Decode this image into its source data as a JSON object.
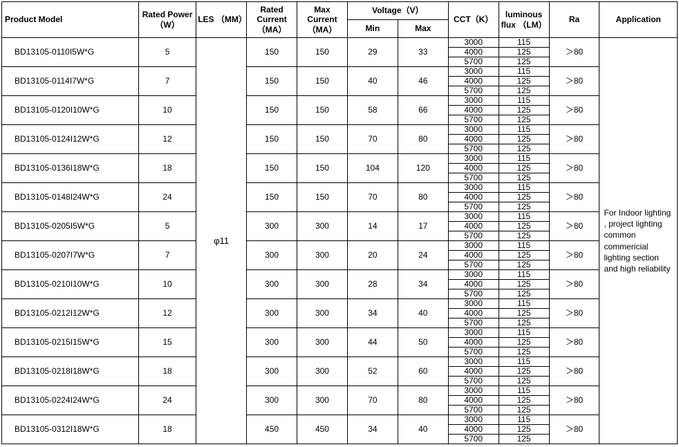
{
  "headers": {
    "product": "Product Model",
    "power": "Rated Power （W）",
    "les": "LES （MM）",
    "rated": "Rated Current （MA）",
    "max": "Max Current （MA）",
    "voltage": "Voltage（V）",
    "vmin": "Min",
    "vmax": "Max",
    "cct": "CCT（K）",
    "lum": "luminous flux （LM）",
    "ra": "Ra",
    "app": "Application"
  },
  "les_value": "φ11",
  "application_text": "For Indoor lighting , project lighting common  commericial lighting section and high reliability",
  "cct_values": [
    "3000",
    "4000",
    "5700"
  ],
  "lum_values": [
    "115",
    "125",
    "125"
  ],
  "ra_value": "＞80",
  "rows": [
    {
      "model": "BD13105-0110I5W*G",
      "power": "5",
      "rated": "150",
      "max": "150",
      "vmin": "29",
      "vmax": "33"
    },
    {
      "model": "BD13105-0114I7W*G",
      "power": "7",
      "rated": "150",
      "max": "150",
      "vmin": "40",
      "vmax": "46"
    },
    {
      "model": "BD13105-0120I10W*G",
      "power": "10",
      "rated": "150",
      "max": "150",
      "vmin": "58",
      "vmax": "66"
    },
    {
      "model": "BD13105-0124I12W*G",
      "power": "12",
      "rated": "150",
      "max": "150",
      "vmin": "70",
      "vmax": "80"
    },
    {
      "model": "BD13105-0136I18W*G",
      "power": "18",
      "rated": "150",
      "max": "150",
      "vmin": "104",
      "vmax": "120"
    },
    {
      "model": "BD13105-0148I24W*G",
      "power": "24",
      "rated": "150",
      "max": "150",
      "vmin": "70",
      "vmax": "80"
    },
    {
      "model": "BD13105-0205I5W*G",
      "power": "5",
      "rated": "300",
      "max": "300",
      "vmin": "14",
      "vmax": "17"
    },
    {
      "model": "BD13105-0207I7W*G",
      "power": "7",
      "rated": "300",
      "max": "300",
      "vmin": "20",
      "vmax": "24"
    },
    {
      "model": "BD13105-0210I10W*G",
      "power": "10",
      "rated": "300",
      "max": "300",
      "vmin": "28",
      "vmax": "34"
    },
    {
      "model": "BD13105-0212I12W*G",
      "power": "12",
      "rated": "300",
      "max": "300",
      "vmin": "34",
      "vmax": "40"
    },
    {
      "model": "BD13105-0215I15W*G",
      "power": "15",
      "rated": "300",
      "max": "300",
      "vmin": "44",
      "vmax": "50"
    },
    {
      "model": "BD13105-0218I18W*G",
      "power": "18",
      "rated": "300",
      "max": "300",
      "vmin": "52",
      "vmax": "60"
    },
    {
      "model": "BD13105-0224I24W*G",
      "power": "24",
      "rated": "300",
      "max": "300",
      "vmin": "70",
      "vmax": "80"
    },
    {
      "model": "BD13105-0312I18W*G",
      "power": "18",
      "rated": "450",
      "max": "450",
      "vmin": "34",
      "vmax": "40"
    }
  ]
}
